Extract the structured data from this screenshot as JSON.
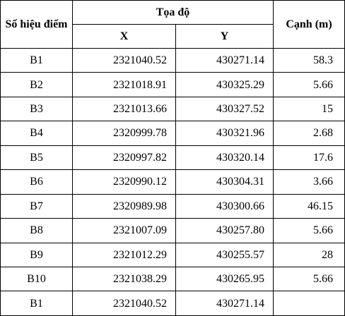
{
  "header": {
    "point_id": "Số hiệu điểm",
    "coordinates": "Tọa độ",
    "x": "X",
    "y": "Y",
    "edge": "Cạnh (m)"
  },
  "rows": [
    {
      "id": "B1",
      "x": "2321040.52",
      "y": "430271.14",
      "edge": "58.3"
    },
    {
      "id": "B2",
      "x": "2321018.91",
      "y": "430325.29",
      "edge": "5.66"
    },
    {
      "id": "B3",
      "x": "2321013.66",
      "y": "430327.52",
      "edge": "15"
    },
    {
      "id": "B4",
      "x": "2320999.78",
      "y": "430321.96",
      "edge": "2.68"
    },
    {
      "id": "B5",
      "x": "2320997.82",
      "y": "430320.14",
      "edge": "17.6"
    },
    {
      "id": "B6",
      "x": "2320990.12",
      "y": "430304.31",
      "edge": "3.66"
    },
    {
      "id": "B7",
      "x": "2320989.98",
      "y": "430300.66",
      "edge": "46.15"
    },
    {
      "id": "B8",
      "x": "2321007.09",
      "y": "430257.80",
      "edge": "5.66"
    },
    {
      "id": "B9",
      "x": "2321012.29",
      "y": "430255.57",
      "edge": "28"
    },
    {
      "id": "B10",
      "x": "2321038.29",
      "y": "430265.95",
      "edge": "5.66"
    },
    {
      "id": "B1",
      "x": "2321040.52",
      "y": "430271.14",
      "edge": ""
    }
  ]
}
